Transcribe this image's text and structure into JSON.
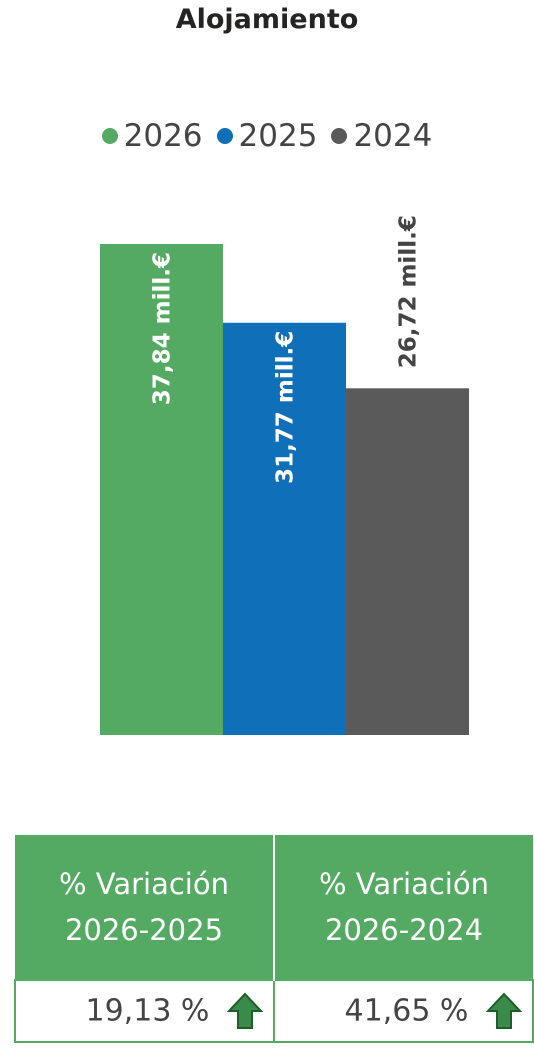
{
  "title": "Alojamiento",
  "chart_data": {
    "type": "bar",
    "title": "Alojamiento",
    "categories": [
      "2026",
      "2025",
      "2024"
    ],
    "values": [
      37.84,
      31.77,
      26.72
    ],
    "data_labels": [
      "37,84 mill.€",
      "31,77 mill.€",
      "26,72 mill.€"
    ],
    "colors": [
      "#55aa63",
      "#0f6fb8",
      "#5a5a5a"
    ],
    "legend": {
      "position": "top-center",
      "entries": [
        "2026",
        "2025",
        "2024"
      ]
    },
    "ylim": [
      0,
      37.84
    ],
    "grid": false,
    "xlabel": "",
    "ylabel": ""
  },
  "legend": [
    {
      "label": "2026",
      "color": "#55aa63"
    },
    {
      "label": "2025",
      "color": "#0f6fb8"
    },
    {
      "label": "2024",
      "color": "#5a5a5a"
    }
  ],
  "variation_table": {
    "headers": [
      {
        "line1": "% Variación",
        "line2": "2026-2025"
      },
      {
        "line1": "% Variación",
        "line2": "2026-2024"
      }
    ],
    "values": [
      "19,13 %",
      "41,65 %"
    ],
    "arrow_icon": "arrow-up-icon",
    "arrow_color": "#3a8a4a",
    "header_color": "#55aa63"
  }
}
